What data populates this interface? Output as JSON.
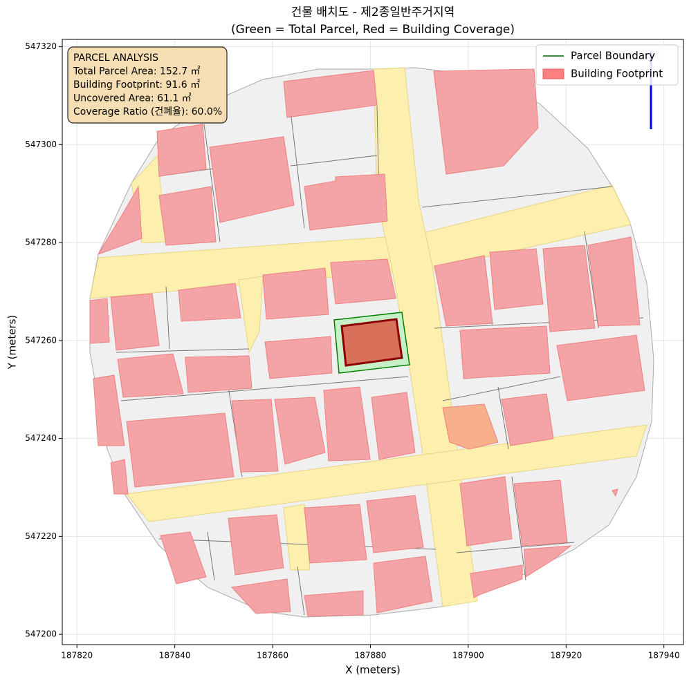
{
  "chart_data": {
    "type": "map",
    "title": [
      "건물 배치도 - 제2종일반주거지역",
      "(Green = Total Parcel, Red = Building Coverage)"
    ],
    "xlabel": "X (meters)",
    "ylabel": "Y (meters)",
    "xlim": [
      187817,
      187944
    ],
    "ylim": [
      547197.9,
      547321.5
    ],
    "xticks": [
      187820,
      187840,
      187860,
      187880,
      187900,
      187920,
      187940
    ],
    "yticks": [
      547200,
      547220,
      547240,
      547260,
      547280,
      547300,
      547320
    ],
    "grid": true,
    "legend_position": "upper right",
    "legend": [
      {
        "name": "Parcel Boundary",
        "color": "#006400",
        "kind": "line"
      },
      {
        "name": "Building Footprint",
        "color": "#ff8080",
        "kind": "patch"
      }
    ],
    "annotation": [
      "PARCEL ANALYSIS",
      "Total Parcel Area: 152.7 ㎡",
      "Building Footprint: 91.6 ㎡",
      "Uncovered Area: 61.1 ㎡",
      "Coverage Ratio (건폐율): 60.0%"
    ]
  }
}
